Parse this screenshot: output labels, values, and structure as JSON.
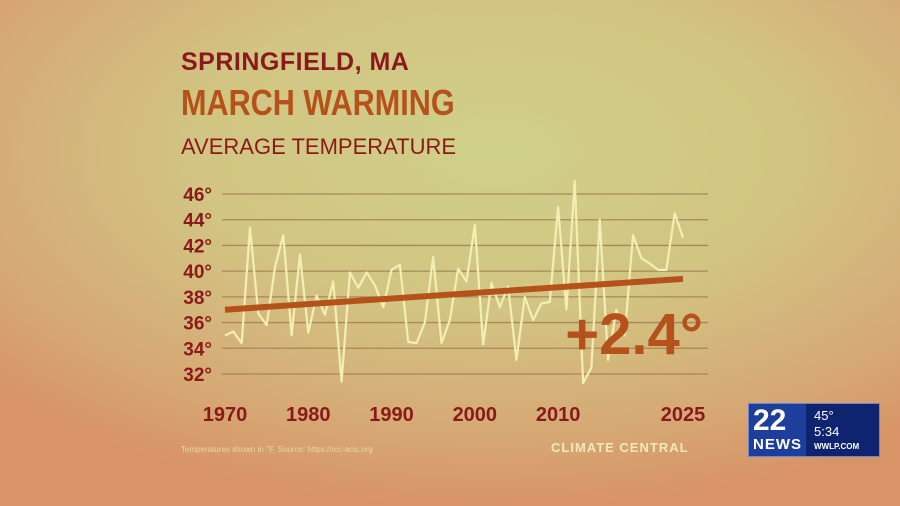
{
  "chart_data": {
    "type": "line",
    "title": "SPRINGFIELD, MA",
    "subtitle": "MARCH WARMING",
    "ylabel": "AVERAGE TEMPERATURE",
    "ylim": [
      31,
      47
    ],
    "xlim": [
      1970,
      2025
    ],
    "yticks": [
      "46°",
      "44°",
      "42°",
      "40°",
      "38°",
      "36°",
      "34°",
      "32°"
    ],
    "ytick_values": [
      46,
      44,
      42,
      40,
      38,
      36,
      34,
      32
    ],
    "xticks": [
      "1970",
      "1980",
      "1990",
      "2000",
      "2010",
      "2025"
    ],
    "xtick_values": [
      1970,
      1980,
      1990,
      2000,
      2010,
      2025
    ],
    "grid": true,
    "series": [
      {
        "x_start": 1970,
        "x_end": 2025,
        "values": [
          35.0,
          35.3,
          34.4,
          43.4,
          36.7,
          35.8,
          40.3,
          42.8,
          35.0,
          41.3,
          35.2,
          38.1,
          36.6,
          39.2,
          31.4,
          39.9,
          38.7,
          39.9,
          38.9,
          37.2,
          40.1,
          40.5,
          34.5,
          34.4,
          36.0,
          41.1,
          34.4,
          36.2,
          40.2,
          39.2,
          43.6,
          34.3,
          39.1,
          37.2,
          38.8,
          33.1,
          38.0,
          36.2,
          37.5,
          37.6,
          45.0,
          37.0,
          47.0,
          31.3,
          32.5,
          44.0,
          33.1,
          37.0,
          35.0,
          42.8,
          41.0,
          40.6,
          40.1,
          40.1,
          44.5,
          42.6
        ],
        "color": "#f3efb4"
      }
    ],
    "trend": {
      "start": [
        1970,
        37.0
      ],
      "end": [
        2025,
        39.4
      ],
      "color": "#b5521c",
      "label": "+2.4°"
    }
  },
  "footer": {
    "source": "Temperatures shown in °F. Source: https://rcc-acis.org",
    "logo": "CLIMATE CENTRAL"
  },
  "news_bug": {
    "channel": "22",
    "brand": "NEWS",
    "temp": "45°",
    "time": "5:34",
    "site": "WWLP.COM"
  }
}
